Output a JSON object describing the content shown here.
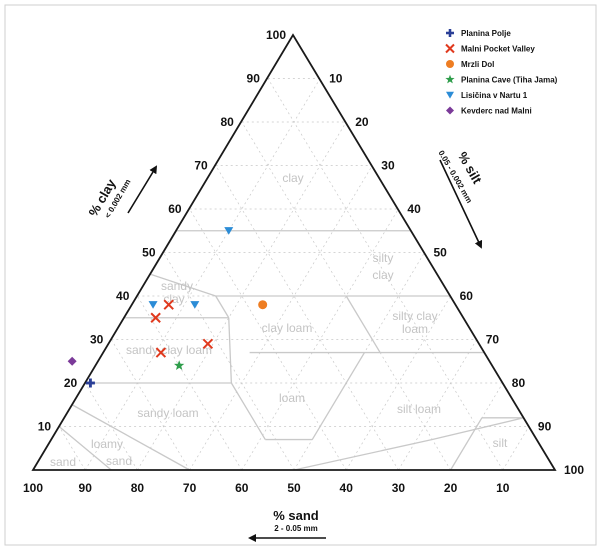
{
  "chart_data": {
    "type": "scatter",
    "subtype": "ternary soil texture triangle",
    "axes": {
      "clay": {
        "title": "% clay",
        "range_label": "< 0.002 mm",
        "ticks": [
          "10",
          "20",
          "30",
          "40",
          "50",
          "60",
          "70",
          "80",
          "90",
          "100"
        ]
      },
      "silt": {
        "title": "% silt",
        "range_label": "0.05 - 0.002 mm",
        "ticks": [
          "10",
          "20",
          "30",
          "40",
          "50",
          "60",
          "70",
          "80",
          "90",
          "100"
        ]
      },
      "sand": {
        "title": "% sand",
        "range_label": "2 - 0.05 mm",
        "ticks": [
          "100",
          "90",
          "80",
          "70",
          "60",
          "50",
          "40",
          "30",
          "20",
          "10"
        ]
      }
    },
    "grid": true,
    "legend_position": "top-right",
    "texture_classes": [
      "clay",
      "silty clay",
      "sandy clay",
      "silty clay loam",
      "clay loam",
      "sandy clay loam",
      "loam",
      "silt loam",
      "sandy loam",
      "loamy sand",
      "sand",
      "silt"
    ],
    "series": [
      {
        "name": "Planina Polje",
        "marker": "plus",
        "color": "#2a3f97",
        "points": [
          {
            "sand": 79,
            "silt": 1,
            "clay": 20
          }
        ]
      },
      {
        "name": "Malni Pocket Valley",
        "marker": "x",
        "color": "#e0391d",
        "points": [
          {
            "sand": 55,
            "silt": 7,
            "clay": 38
          },
          {
            "sand": 59,
            "silt": 6,
            "clay": 35
          },
          {
            "sand": 52,
            "silt": 19,
            "clay": 29
          },
          {
            "sand": 62,
            "silt": 11,
            "clay": 27
          }
        ]
      },
      {
        "name": "Mrzli Dol",
        "marker": "circle",
        "color": "#ee7d22",
        "points": [
          {
            "sand": 37,
            "silt": 25,
            "clay": 38
          }
        ]
      },
      {
        "name": "Planina Cave (Tiha Jama)",
        "marker": "star",
        "color": "#2e9d4b",
        "points": [
          {
            "sand": 60,
            "silt": 16,
            "clay": 24
          }
        ]
      },
      {
        "name": "Lisičina v Nartu 1",
        "marker": "triangle-down",
        "color": "#2b8cd6",
        "points": [
          {
            "sand": 35,
            "silt": 10,
            "clay": 55
          },
          {
            "sand": 58,
            "silt": 4,
            "clay": 38
          },
          {
            "sand": 50,
            "silt": 12,
            "clay": 38
          }
        ]
      },
      {
        "name": "Kevderc nad Malni",
        "marker": "diamond",
        "color": "#7b3a99",
        "points": [
          {
            "sand": 80,
            "silt": -5,
            "clay": 25
          }
        ]
      }
    ]
  }
}
